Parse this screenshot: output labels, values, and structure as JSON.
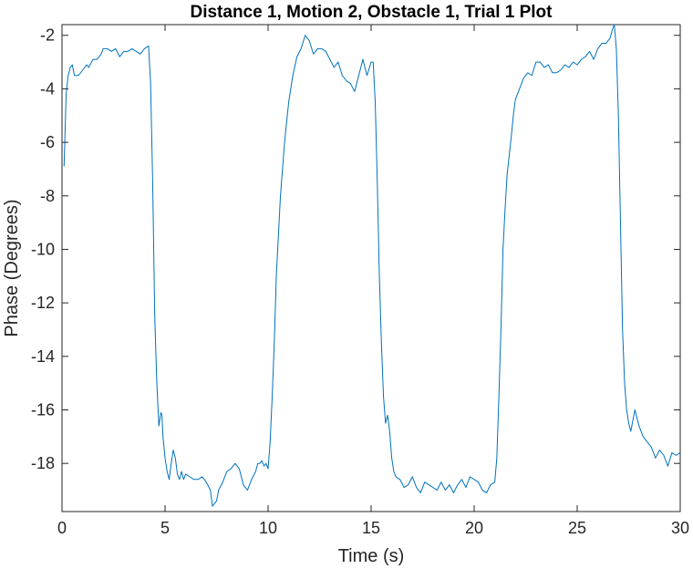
{
  "chart_data": {
    "type": "line",
    "title": "Distance 1, Motion 2, Obstacle 1, Trial 1 Plot",
    "xlabel": "Time (s)",
    "ylabel": "Phase (Degrees)",
    "xlim": [
      0,
      30
    ],
    "ylim": [
      -19.8,
      -1.6
    ],
    "xticks": [
      0,
      5,
      10,
      15,
      20,
      25,
      30
    ],
    "xtick_labels": [
      "0",
      "5",
      "10",
      "15",
      "20",
      "25",
      "30"
    ],
    "yticks": [
      -2,
      -4,
      -6,
      -8,
      -10,
      -12,
      -14,
      -16,
      -18
    ],
    "ytick_labels": [
      "-2",
      "-4",
      "-6",
      "-8",
      "-10",
      "-12",
      "-14",
      "-16",
      "-18"
    ],
    "grid": false,
    "line_color": "#0072BD",
    "series": [
      {
        "x": [
          0.1,
          0.2,
          0.3,
          0.4,
          0.5,
          0.6,
          0.8,
          1.0,
          1.2,
          1.3,
          1.5,
          1.7,
          1.9,
          2.0,
          2.2,
          2.4,
          2.6,
          2.8,
          3.0,
          3.2,
          3.4,
          3.6,
          3.8,
          4.0,
          4.2,
          4.3,
          4.4,
          4.5,
          4.6,
          4.7,
          4.8,
          4.85,
          4.9,
          5.0,
          5.1,
          5.2,
          5.3,
          5.4,
          5.5,
          5.6,
          5.7,
          5.8,
          5.9,
          6.0,
          6.2,
          6.4,
          6.6,
          6.8,
          7.0,
          7.2,
          7.3,
          7.4,
          7.5,
          7.6,
          7.8,
          8.0,
          8.2,
          8.4,
          8.6,
          8.8,
          9.0,
          9.2,
          9.4,
          9.5,
          9.6,
          9.7,
          9.8,
          9.9,
          10.0,
          10.1,
          10.2,
          10.3,
          10.4,
          10.5,
          10.6,
          10.8,
          11.0,
          11.2,
          11.4,
          11.6,
          11.8,
          12.0,
          12.2,
          12.4,
          12.6,
          12.8,
          13.0,
          13.2,
          13.4,
          13.6,
          13.8,
          14.0,
          14.2,
          14.4,
          14.6,
          14.8,
          15.0,
          15.1,
          15.2,
          15.3,
          15.4,
          15.5,
          15.6,
          15.7,
          15.8,
          15.9,
          16.0,
          16.1,
          16.2,
          16.4,
          16.6,
          16.8,
          17.0,
          17.2,
          17.4,
          17.6,
          17.8,
          18.0,
          18.2,
          18.4,
          18.6,
          18.8,
          19.0,
          19.2,
          19.4,
          19.6,
          19.8,
          20.0,
          20.2,
          20.4,
          20.6,
          20.8,
          21.0,
          21.1,
          21.2,
          21.3,
          21.4,
          21.5,
          21.6,
          21.7,
          21.8,
          21.9,
          22.0,
          22.2,
          22.4,
          22.6,
          22.8,
          23.0,
          23.2,
          23.4,
          23.6,
          23.8,
          24.0,
          24.2,
          24.4,
          24.6,
          24.8,
          25.0,
          25.2,
          25.4,
          25.6,
          25.8,
          26.0,
          26.2,
          26.4,
          26.6,
          26.7,
          26.8,
          26.9,
          27.0,
          27.1,
          27.2,
          27.3,
          27.4,
          27.5,
          27.6,
          27.8,
          28.0,
          28.2,
          28.4,
          28.6,
          28.8,
          29.0,
          29.2,
          29.4,
          29.6,
          29.8,
          30.0
        ],
        "values": [
          -6.9,
          -4.2,
          -3.5,
          -3.2,
          -3.1,
          -3.5,
          -3.5,
          -3.3,
          -3.1,
          -3.2,
          -2.9,
          -2.9,
          -2.7,
          -2.5,
          -2.5,
          -2.6,
          -2.5,
          -2.8,
          -2.6,
          -2.6,
          -2.5,
          -2.6,
          -2.7,
          -2.5,
          -2.4,
          -3.8,
          -7.5,
          -12.5,
          -15.0,
          -16.6,
          -16.1,
          -16.2,
          -17.0,
          -17.8,
          -18.3,
          -18.6,
          -18.0,
          -17.5,
          -17.8,
          -18.4,
          -18.6,
          -18.3,
          -18.6,
          -18.4,
          -18.5,
          -18.6,
          -18.6,
          -18.5,
          -18.7,
          -19.0,
          -19.6,
          -19.5,
          -19.4,
          -19.0,
          -18.7,
          -18.3,
          -18.2,
          -18.0,
          -18.2,
          -18.8,
          -19.0,
          -18.6,
          -18.3,
          -18.0,
          -18.0,
          -17.9,
          -18.1,
          -18.0,
          -18.2,
          -17.2,
          -15.5,
          -13.5,
          -11.0,
          -9.5,
          -8.0,
          -6.0,
          -4.5,
          -3.5,
          -2.8,
          -2.5,
          -2.0,
          -2.2,
          -2.7,
          -2.5,
          -2.5,
          -2.6,
          -2.9,
          -3.2,
          -3.0,
          -3.5,
          -3.7,
          -3.8,
          -4.1,
          -3.5,
          -2.9,
          -3.5,
          -3.0,
          -3.0,
          -4.5,
          -7.5,
          -11.0,
          -13.5,
          -15.5,
          -16.5,
          -16.2,
          -16.8,
          -17.8,
          -18.3,
          -18.5,
          -18.6,
          -18.9,
          -18.8,
          -18.5,
          -18.9,
          -19.1,
          -18.7,
          -18.8,
          -18.9,
          -19.0,
          -18.7,
          -19.0,
          -18.8,
          -19.1,
          -18.8,
          -18.6,
          -18.9,
          -18.5,
          -18.6,
          -18.7,
          -19.0,
          -19.1,
          -18.8,
          -18.7,
          -17.8,
          -15.5,
          -13.0,
          -10.0,
          -8.5,
          -7.2,
          -6.5,
          -5.8,
          -5.0,
          -4.4,
          -4.0,
          -3.6,
          -3.4,
          -3.5,
          -3.0,
          -3.0,
          -3.2,
          -3.1,
          -3.4,
          -3.4,
          -3.3,
          -3.1,
          -3.2,
          -3.0,
          -3.1,
          -2.9,
          -2.8,
          -2.6,
          -2.9,
          -2.5,
          -2.3,
          -2.3,
          -2.1,
          -1.8,
          -1.6,
          -2.5,
          -5.0,
          -9.0,
          -13.0,
          -15.0,
          -16.0,
          -16.5,
          -16.8,
          -16.0,
          -16.6,
          -17.0,
          -17.2,
          -17.4,
          -17.8,
          -17.5,
          -17.7,
          -18.1,
          -17.6,
          -17.7,
          -17.6
        ]
      }
    ]
  }
}
